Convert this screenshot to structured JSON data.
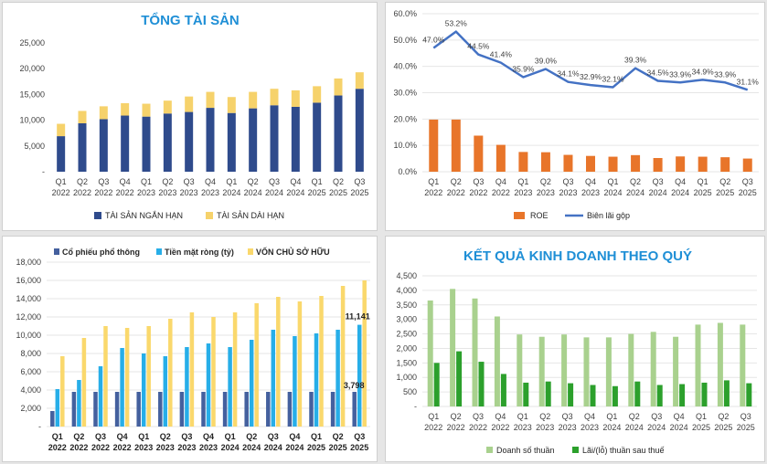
{
  "categories": [
    {
      "q": "Q1",
      "y": "2022"
    },
    {
      "q": "Q2",
      "y": "2022"
    },
    {
      "q": "Q3",
      "y": "2022"
    },
    {
      "q": "Q4",
      "y": "2022"
    },
    {
      "q": "Q1",
      "y": "2023"
    },
    {
      "q": "Q2",
      "y": "2023"
    },
    {
      "q": "Q3",
      "y": "2023"
    },
    {
      "q": "Q4",
      "y": "2023"
    },
    {
      "q": "Q1",
      "y": "2024"
    },
    {
      "q": "Q2",
      "y": "2024"
    },
    {
      "q": "Q3",
      "y": "2024"
    },
    {
      "q": "Q4",
      "y": "2024"
    },
    {
      "q": "Q1",
      "y": "2025"
    },
    {
      "q": "Q2",
      "y": "2025"
    },
    {
      "q": "Q3",
      "y": "2025"
    }
  ],
  "chart_data": [
    {
      "id": "total-assets",
      "type": "bar",
      "stacked": true,
      "title": "TỔNG TÀI SẢN",
      "ylim": [
        0,
        25000
      ],
      "yticks": [
        0,
        5000,
        10000,
        15000,
        20000,
        25000
      ],
      "ytick_labels": [
        "-",
        "5,000",
        "10,000",
        "15,000",
        "20,000",
        "25,000"
      ],
      "series": [
        {
          "name": "TÀI SẢN NGẮN HẠN",
          "color": "#2f4b8c",
          "values": [
            6900,
            9400,
            10200,
            10900,
            10700,
            11300,
            11600,
            12400,
            11400,
            12300,
            12900,
            12600,
            13400,
            14800,
            16100
          ]
        },
        {
          "name": "TÀI SẢN DÀI HẠN",
          "color": "#f6d26b",
          "values": [
            2400,
            2400,
            2500,
            2400,
            2500,
            2500,
            3000,
            3100,
            3100,
            3200,
            3200,
            3200,
            3200,
            3300,
            3200
          ]
        }
      ]
    },
    {
      "id": "roe-margin",
      "type": "bar+line",
      "title": "",
      "ylim": [
        0,
        0.6
      ],
      "yticks": [
        0,
        0.1,
        0.2,
        0.3,
        0.4,
        0.5,
        0.6
      ],
      "ytick_labels": [
        "0.0%",
        "10.0%",
        "20.0%",
        "30.0%",
        "40.0%",
        "50.0%",
        "60.0%"
      ],
      "series": [
        {
          "name": "ROE",
          "kind": "bar",
          "color": "#e8752a",
          "values": [
            0.198,
            0.198,
            0.137,
            0.102,
            0.075,
            0.074,
            0.064,
            0.06,
            0.057,
            0.063,
            0.052,
            0.058,
            0.057,
            0.055,
            0.05
          ]
        },
        {
          "name": "Biên lãi gộp",
          "kind": "line",
          "color": "#4472c4",
          "values": [
            0.47,
            0.532,
            0.445,
            0.414,
            0.359,
            0.39,
            0.341,
            0.329,
            0.321,
            0.393,
            0.345,
            0.339,
            0.349,
            0.339,
            0.311
          ],
          "labels": [
            "47.0%",
            "53.2%",
            "44.5%",
            "41.4%",
            "35.9%",
            "39.0%",
            "34.1%",
            "32.9%",
            "32.1%",
            "39.3%",
            "34.5%",
            "33.9%",
            "34.9%",
            "33.9%",
            "31.1%"
          ]
        }
      ]
    },
    {
      "id": "equity",
      "type": "bar",
      "title": "",
      "ylim": [
        0,
        18000
      ],
      "yticks": [
        0,
        2000,
        4000,
        6000,
        8000,
        10000,
        12000,
        14000,
        16000,
        18000
      ],
      "ytick_labels": [
        "-",
        "2,000",
        "4,000",
        "6,000",
        "8,000",
        "10,000",
        "12,000",
        "14,000",
        "16,000",
        "18,000"
      ],
      "series": [
        {
          "name": "Cổ phiếu phổ thông",
          "color": "#44609e",
          "values": [
            1700,
            3800,
            3800,
            3800,
            3800,
            3800,
            3800,
            3800,
            3800,
            3800,
            3800,
            3800,
            3800,
            3800,
            3798
          ]
        },
        {
          "name": "Tiền mặt ròng (tỷ)",
          "color": "#27aee8",
          "values": [
            4100,
            5100,
            6600,
            8600,
            8000,
            7700,
            8700,
            9100,
            8700,
            9500,
            10600,
            9900,
            10200,
            10600,
            11141
          ]
        },
        {
          "name": "VỐN CHỦ SỞ HỮU",
          "color": "#fad86c",
          "values": [
            7700,
            9700,
            11000,
            10800,
            11000,
            11800,
            12500,
            12000,
            12500,
            13500,
            14200,
            13700,
            14300,
            15400,
            16000
          ]
        }
      ],
      "annotations": [
        {
          "label": "11,141"
        },
        {
          "label": "3,798"
        }
      ]
    },
    {
      "id": "business-results",
      "type": "bar",
      "title": "KẾT QUẢ KINH DOANH THEO QUÝ",
      "ylim": [
        0,
        4500
      ],
      "yticks": [
        0,
        500,
        1000,
        1500,
        2000,
        2500,
        3000,
        3500,
        4000,
        4500
      ],
      "ytick_labels": [
        "-",
        "500",
        "1,000",
        "1,500",
        "2,000",
        "2,500",
        "3,000",
        "3,500",
        "4,000",
        "4,500"
      ],
      "series": [
        {
          "name": "Doanh số thuần",
          "color": "#a9d18e",
          "values": [
            3650,
            4050,
            3720,
            3100,
            2480,
            2400,
            2480,
            2380,
            2380,
            2500,
            2570,
            2400,
            2820,
            2880,
            2820
          ]
        },
        {
          "name": "Lãi/(lỗ) thuần sau thuế",
          "color": "#2ca02c",
          "values": [
            1500,
            1900,
            1540,
            1120,
            820,
            860,
            800,
            740,
            700,
            860,
            740,
            770,
            820,
            900,
            800
          ]
        }
      ]
    }
  ]
}
